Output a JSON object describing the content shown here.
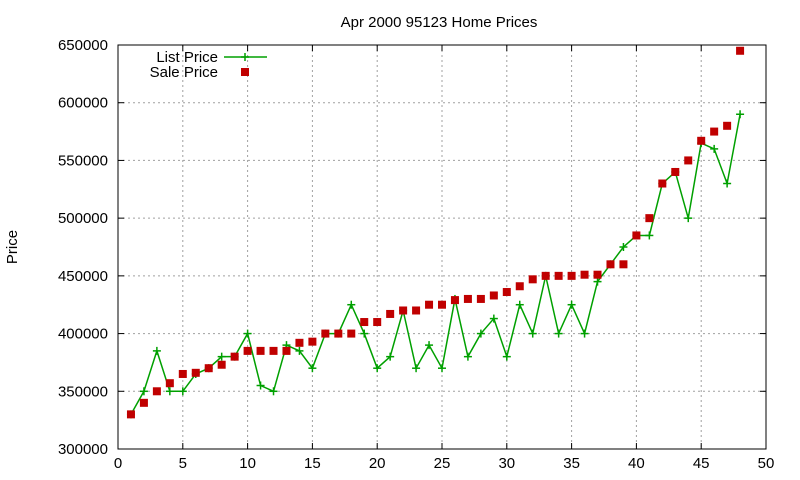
{
  "chart_data": {
    "type": "line",
    "title": "Apr 2000 95123 Home Prices",
    "xlabel": "",
    "ylabel": "Price",
    "xlim": [
      0,
      50
    ],
    "ylim": [
      300000,
      650000
    ],
    "xticks": [
      0,
      5,
      10,
      15,
      20,
      25,
      30,
      35,
      40,
      45,
      50
    ],
    "yticks": [
      300000,
      350000,
      400000,
      450000,
      500000,
      550000,
      600000,
      650000
    ],
    "grid": true,
    "legend_position": "top-left",
    "series": [
      {
        "name": "List Price",
        "style": "line-points",
        "marker": "plus",
        "color": "#00a000",
        "x": [
          1,
          2,
          3,
          4,
          5,
          6,
          7,
          8,
          9,
          10,
          11,
          12,
          13,
          14,
          15,
          16,
          17,
          18,
          19,
          20,
          21,
          22,
          23,
          24,
          25,
          26,
          27,
          28,
          29,
          30,
          31,
          32,
          33,
          34,
          35,
          36,
          37,
          38,
          39,
          40,
          41,
          42,
          43,
          44,
          45,
          46,
          47,
          48
        ],
        "y": [
          330000,
          350000,
          385000,
          350000,
          350000,
          365000,
          370000,
          380000,
          380000,
          400000,
          355000,
          350000,
          390000,
          385000,
          370000,
          400000,
          400000,
          425000,
          400000,
          370000,
          380000,
          420000,
          370000,
          390000,
          370000,
          430000,
          380000,
          400000,
          413000,
          380000,
          425000,
          400000,
          450000,
          400000,
          425000,
          400000,
          445000,
          460000,
          475000,
          485000,
          485000,
          530000,
          540000,
          500000,
          565000,
          560000,
          530000,
          590000
        ]
      },
      {
        "name": "Sale Price",
        "style": "points",
        "marker": "square",
        "color": "#c00000",
        "x": [
          1,
          2,
          3,
          4,
          5,
          6,
          7,
          8,
          9,
          10,
          11,
          12,
          13,
          14,
          15,
          16,
          17,
          18,
          19,
          20,
          21,
          22,
          23,
          24,
          25,
          26,
          27,
          28,
          29,
          30,
          31,
          32,
          33,
          34,
          35,
          36,
          37,
          38,
          39,
          40,
          41,
          42,
          43,
          44,
          45,
          46,
          47,
          48
        ],
        "y": [
          330000,
          340000,
          350000,
          357000,
          365000,
          366000,
          370000,
          373000,
          380000,
          385000,
          385000,
          385000,
          385000,
          392000,
          393000,
          400000,
          400000,
          400000,
          410000,
          410000,
          417000,
          420000,
          420000,
          425000,
          425000,
          429000,
          430000,
          430000,
          433000,
          436000,
          441000,
          447000,
          450000,
          450000,
          450000,
          451000,
          451000,
          460000,
          460000,
          485000,
          500000,
          530000,
          540000,
          550000,
          567000,
          575000,
          580000,
          645000
        ]
      }
    ]
  }
}
